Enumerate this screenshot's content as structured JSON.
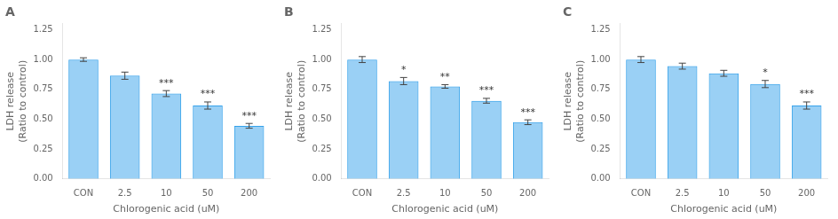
{
  "chart_data": [
    {
      "type": "bar",
      "title": "A",
      "categories": [
        "CON",
        "2.5",
        "10",
        "50",
        "200"
      ],
      "values": [
        1.0,
        0.865,
        0.715,
        0.615,
        0.445
      ],
      "errors": [
        0.015,
        0.03,
        0.025,
        0.03,
        0.02
      ],
      "annotations": [
        {
          "category": "10",
          "text": "***"
        },
        {
          "category": "50",
          "text": "***"
        },
        {
          "category": "200",
          "text": "***"
        }
      ],
      "xlabel": "Chlorogenic acid (uM)",
      "ylabel": "LDH release\n(Ratio to control)",
      "ylim": [
        0.0,
        1.3
      ],
      "yticks": [
        {
          "value": 0.0,
          "label": "0.00"
        },
        {
          "value": 0.25,
          "label": "0.25"
        },
        {
          "value": 0.5,
          "label": "0.50"
        },
        {
          "value": 0.75,
          "label": "0.75"
        },
        {
          "value": 1.0,
          "label": "1.00"
        },
        {
          "value": 1.25,
          "label": "1.25"
        }
      ],
      "grid": false
    },
    {
      "type": "bar",
      "title": "B",
      "categories": [
        "CON",
        "2.5",
        "10",
        "50",
        "200"
      ],
      "values": [
        1.0,
        0.82,
        0.775,
        0.655,
        0.475
      ],
      "errors": [
        0.025,
        0.03,
        0.015,
        0.02,
        0.02
      ],
      "annotations": [
        {
          "category": "2.5",
          "text": "*"
        },
        {
          "category": "10",
          "text": "**"
        },
        {
          "category": "50",
          "text": "***"
        },
        {
          "category": "200",
          "text": "***"
        }
      ],
      "xlabel": "Chlorogenic acid (uM)",
      "ylabel": "LDH release\n(Ratio to control)",
      "ylim": [
        0.0,
        1.3
      ],
      "yticks": [
        {
          "value": 0.0,
          "label": "0.00"
        },
        {
          "value": 0.25,
          "label": "0.25"
        },
        {
          "value": 0.5,
          "label": "0.50"
        },
        {
          "value": 0.75,
          "label": "0.75"
        },
        {
          "value": 1.0,
          "label": "1.00"
        },
        {
          "value": 1.25,
          "label": "1.25"
        }
      ],
      "grid": false
    },
    {
      "type": "bar",
      "title": "C",
      "categories": [
        "CON",
        "2.5",
        "10",
        "50",
        "200"
      ],
      "values": [
        1.0,
        0.945,
        0.885,
        0.795,
        0.615
      ],
      "errors": [
        0.025,
        0.025,
        0.025,
        0.03,
        0.03
      ],
      "annotations": [
        {
          "category": "50",
          "text": "*"
        },
        {
          "category": "200",
          "text": "***"
        }
      ],
      "xlabel": "Chlorogenic acid (uM)",
      "ylabel": "LDH release\n(Ratio to control)",
      "ylim": [
        0.0,
        1.3
      ],
      "yticks": [
        {
          "value": 0.0,
          "label": "0.00"
        },
        {
          "value": 0.25,
          "label": "0.25"
        },
        {
          "value": 0.5,
          "label": "0.50"
        },
        {
          "value": 0.75,
          "label": "0.75"
        },
        {
          "value": 1.0,
          "label": "1.00"
        },
        {
          "value": 1.25,
          "label": "1.25"
        }
      ],
      "grid": false
    }
  ]
}
